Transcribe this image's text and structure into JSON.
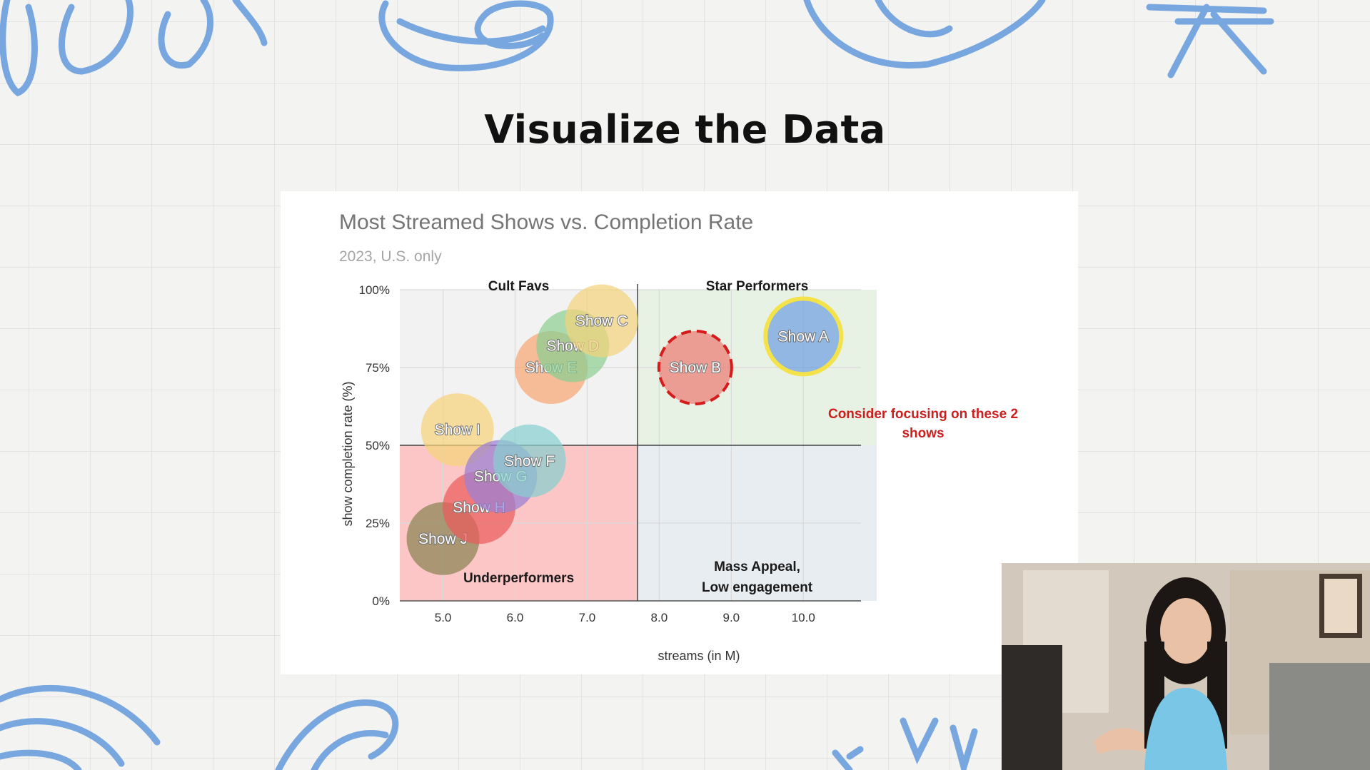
{
  "slide": {
    "title": "Visualize the Data"
  },
  "chart_data": {
    "type": "scatter",
    "title": "Most Streamed Shows vs. Completion Rate",
    "subtitle": "2023, U.S. only",
    "xlabel": "streams (in M)",
    "ylabel": "show completion rate (%)",
    "xlim": [
      4.4,
      10.8
    ],
    "ylim": [
      0,
      100
    ],
    "x_ticks": [
      "5.0",
      "6.0",
      "7.0",
      "8.0",
      "9.0",
      "10.0"
    ],
    "y_ticks": [
      "0%",
      "25%",
      "50%",
      "75%",
      "100%"
    ],
    "grid": true,
    "divider": {
      "x": 7.7,
      "y": 50
    },
    "quadrants": [
      {
        "label": "Cult Favs",
        "color": "#f2f2f2"
      },
      {
        "label": "Star Performers",
        "color": "#e8f2e4"
      },
      {
        "label": "Underperformers",
        "color": "#fcc6c6"
      },
      {
        "label": "Mass Appeal, Low engagement",
        "color": "#e8edf1"
      }
    ],
    "points": [
      {
        "name": "Show A",
        "x": 10.0,
        "y": 85,
        "color": "#6fa0e0",
        "highlight": "gold-ring"
      },
      {
        "name": "Show B",
        "x": 8.5,
        "y": 75,
        "color": "#ec7b73",
        "highlight": "red-dashed-ring"
      },
      {
        "name": "Show C",
        "x": 7.2,
        "y": 90,
        "color": "#f3d27c"
      },
      {
        "name": "Show D",
        "x": 6.8,
        "y": 82,
        "color": "#8cce92"
      },
      {
        "name": "Show E",
        "x": 6.5,
        "y": 75,
        "color": "#f5a673"
      },
      {
        "name": "Show F",
        "x": 6.2,
        "y": 45,
        "color": "#88cece"
      },
      {
        "name": "Show G",
        "x": 5.8,
        "y": 40,
        "color": "#9a7fd4"
      },
      {
        "name": "Show H",
        "x": 5.5,
        "y": 30,
        "color": "#ec5c5c"
      },
      {
        "name": "Show I",
        "x": 5.2,
        "y": 55,
        "color": "#f5d27a"
      },
      {
        "name": "Show J",
        "x": 5.0,
        "y": 20,
        "color": "#8a8453"
      }
    ],
    "annotation": "Consider focusing on these 2 shows",
    "annotation_color": "#cc1f1f"
  }
}
